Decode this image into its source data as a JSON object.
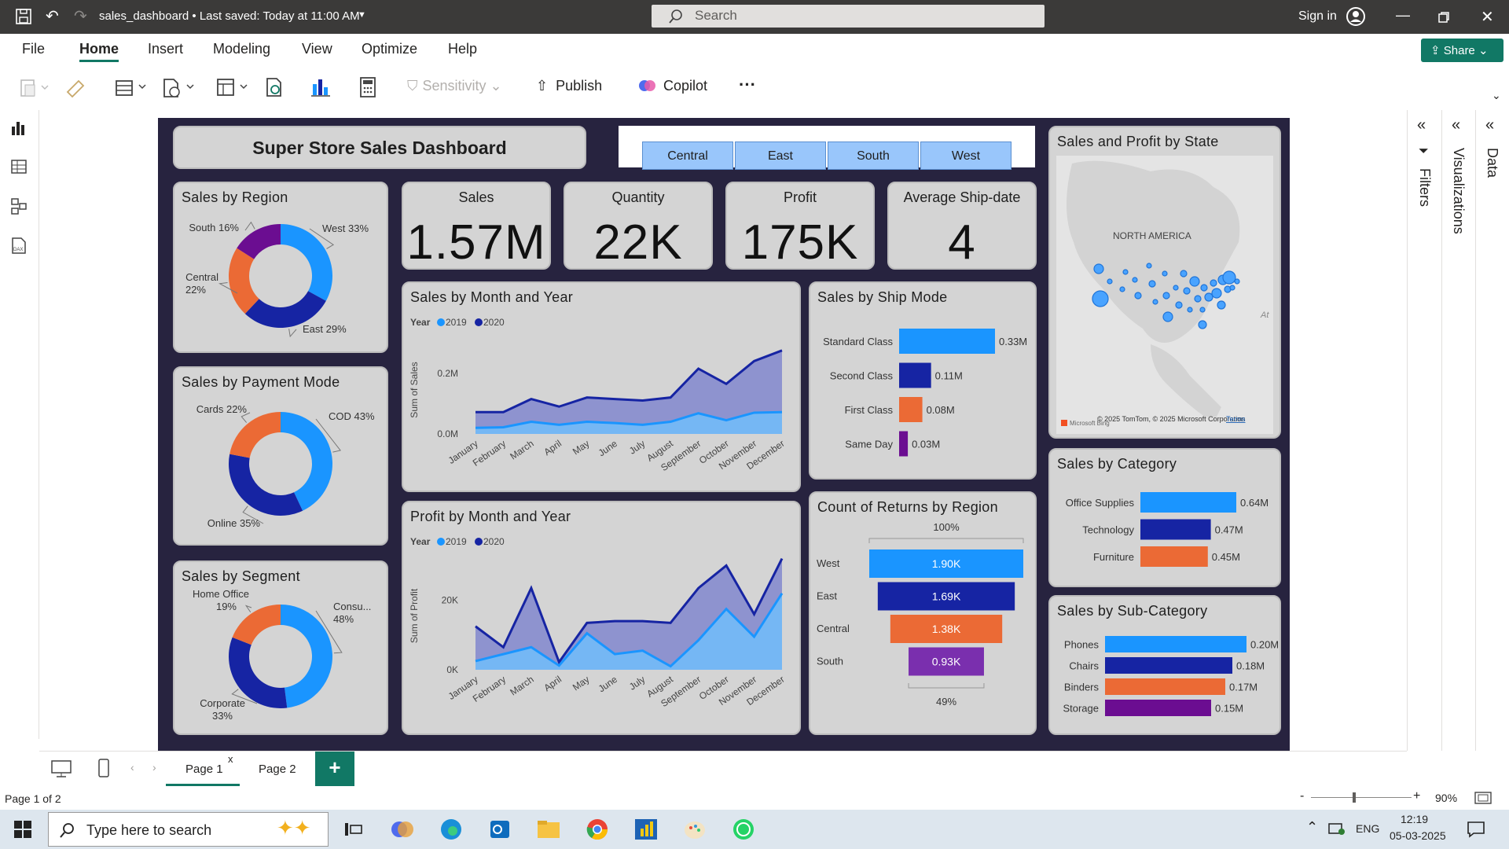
{
  "window": {
    "title": "sales_dashboard • Last saved: Today at 11:00 AM",
    "search_placeholder": "Search",
    "signin": "Sign in"
  },
  "menu": [
    "File",
    "Home",
    "Insert",
    "Modeling",
    "View",
    "Optimize",
    "Help"
  ],
  "share_label": "Share",
  "ribbon": {
    "sensitivity": "Sensitivity",
    "publish": "Publish",
    "copilot": "Copilot",
    "more": "···"
  },
  "colors": {
    "c1": "#1a95ff",
    "c2": "#1624a3",
    "c3": "#eb6a35",
    "c4": "#6b0d91",
    "c5": "#7a2fae"
  },
  "dashboard": {
    "title": "Super Store Sales Dashboard",
    "slicer": [
      "Central",
      "East",
      "South",
      "West"
    ],
    "kpis": [
      {
        "label": "Sales",
        "value": "1.57M"
      },
      {
        "label": "Quantity",
        "value": "22K"
      },
      {
        "label": "Profit",
        "value": "175K"
      },
      {
        "label": "Average Ship-date",
        "value": "4"
      }
    ]
  },
  "chart_data": [
    {
      "id": "region",
      "type": "pie",
      "title": "Sales by Region",
      "slices": [
        {
          "label": "West",
          "value": 33,
          "text": "West 33%",
          "color": "#1a95ff"
        },
        {
          "label": "East",
          "value": 29,
          "text": "East 29%",
          "color": "#1624a3"
        },
        {
          "label": "Central",
          "value": 22,
          "text": "Central 22%",
          "color": "#eb6a35"
        },
        {
          "label": "South",
          "value": 16,
          "text": "South 16%",
          "color": "#6b0d91"
        }
      ]
    },
    {
      "id": "payment",
      "type": "pie",
      "title": "Sales by Payment Mode",
      "slices": [
        {
          "label": "COD",
          "value": 43,
          "text": "COD 43%",
          "color": "#1a95ff"
        },
        {
          "label": "Online",
          "value": 35,
          "text": "Online 35%",
          "color": "#1624a3"
        },
        {
          "label": "Cards",
          "value": 22,
          "text": "Cards 22%",
          "color": "#eb6a35"
        }
      ]
    },
    {
      "id": "segment",
      "type": "pie",
      "title": "Sales by Segment",
      "slices": [
        {
          "label": "Consumer",
          "value": 48,
          "text": "Consu... 48%",
          "color": "#1a95ff"
        },
        {
          "label": "Corporate",
          "value": 33,
          "text": "Corporate 33%",
          "color": "#1624a3"
        },
        {
          "label": "Home Office",
          "value": 19,
          "text": "Home Office 19%",
          "color": "#eb6a35"
        }
      ]
    },
    {
      "id": "salesmonth",
      "type": "area",
      "title": "Sales by Month and Year",
      "legend_title": "Year",
      "ylabel": "Sum of Sales",
      "x": [
        "January",
        "February",
        "March",
        "April",
        "May",
        "June",
        "July",
        "August",
        "September",
        "October",
        "November",
        "December"
      ],
      "ylim": [
        0,
        0.29
      ],
      "yticks": [
        {
          "v": 0,
          "t": "0.0M"
        },
        {
          "v": 0.2,
          "t": "0.2M"
        }
      ],
      "series": [
        {
          "name": "2019",
          "color": "#1a95ff",
          "values": [
            0.02,
            0.022,
            0.04,
            0.03,
            0.04,
            0.036,
            0.03,
            0.04,
            0.068,
            0.045,
            0.07,
            0.072
          ]
        },
        {
          "name": "2020",
          "color": "#1624a3",
          "values": [
            0.072,
            0.072,
            0.115,
            0.09,
            0.12,
            0.115,
            0.11,
            0.12,
            0.215,
            0.165,
            0.24,
            0.275
          ]
        }
      ]
    },
    {
      "id": "profitmonth",
      "type": "area",
      "title": "Profit by Month and Year",
      "legend_title": "Year",
      "ylabel": "Sum of Profit",
      "x": [
        "January",
        "February",
        "March",
        "April",
        "May",
        "June",
        "July",
        "August",
        "September",
        "October",
        "November",
        "December"
      ],
      "ylim": [
        0,
        31000
      ],
      "yticks": [
        {
          "v": 0,
          "t": "0K"
        },
        {
          "v": 20000,
          "t": "20K"
        }
      ],
      "series": [
        {
          "name": "2019",
          "color": "#1a95ff",
          "values": [
            2500,
            4500,
            6500,
            1200,
            10500,
            4500,
            5500,
            1000,
            8500,
            17500,
            9500,
            22000
          ]
        },
        {
          "name": "2020",
          "color": "#1624a3",
          "values": [
            12500,
            6500,
            23500,
            2200,
            13500,
            14000,
            14000,
            13500,
            23500,
            30000,
            16000,
            32000
          ]
        }
      ]
    },
    {
      "id": "shipmode",
      "type": "bar",
      "title": "Sales by Ship Mode",
      "categories": [
        "Standard Class",
        "Second Class",
        "First Class",
        "Same Day"
      ],
      "values": [
        0.33,
        0.11,
        0.08,
        0.03
      ],
      "labels": [
        "0.33M",
        "0.11M",
        "0.08M",
        "0.03M"
      ],
      "colors": [
        "#1a95ff",
        "#1624a3",
        "#eb6a35",
        "#6b0d91"
      ],
      "max": 0.33
    },
    {
      "id": "returns",
      "type": "bar",
      "title": "Count of Returns by Region",
      "top_label": "100%",
      "bottom_label": "49%",
      "categories": [
        "West",
        "East",
        "Central",
        "South"
      ],
      "values": [
        1.9,
        1.69,
        1.38,
        0.93
      ],
      "labels": [
        "1.90K",
        "1.69K",
        "1.38K",
        "0.93K"
      ],
      "colors": [
        "#1a95ff",
        "#1624a3",
        "#eb6a35",
        "#7a2fae"
      ],
      "max": 1.9
    },
    {
      "id": "category",
      "type": "bar",
      "title": "Sales by Category",
      "categories": [
        "Office Supplies",
        "Technology",
        "Furniture"
      ],
      "values": [
        0.64,
        0.47,
        0.45
      ],
      "labels": [
        "0.64M",
        "0.47M",
        "0.45M"
      ],
      "colors": [
        "#1a95ff",
        "#1624a3",
        "#eb6a35"
      ],
      "max": 0.64
    },
    {
      "id": "subcat",
      "type": "bar",
      "title": "Sales by Sub-Category",
      "categories": [
        "Phones",
        "Chairs",
        "Binders",
        "Storage"
      ],
      "values": [
        0.2,
        0.18,
        0.17,
        0.15
      ],
      "labels": [
        "0.20M",
        "0.18M",
        "0.17M",
        "0.15M"
      ],
      "colors": [
        "#1a95ff",
        "#1624a3",
        "#eb6a35",
        "#6b0d91"
      ],
      "max": 0.2
    }
  ],
  "map": {
    "title": "Sales and Profit by State",
    "region_label": "NORTH AMERICA",
    "attribution": "© 2025 TomTom, © 2025 Microsoft Corporation",
    "terms": "Terms",
    "bing": "Microsoft Bing",
    "edge_label": "At"
  },
  "panes": [
    "Filters",
    "Visualizations",
    "Data"
  ],
  "pages": {
    "page1": "Page 1",
    "page2": "Page 2",
    "close": "x",
    "add": "+"
  },
  "status": {
    "page": "Page 1 of 2",
    "zoom": "90%",
    "minus": "-",
    "plus": "+"
  },
  "taskbar": {
    "search": "Type here to search",
    "lang": "ENG",
    "time": "12:19",
    "date": "05-03-2025"
  }
}
